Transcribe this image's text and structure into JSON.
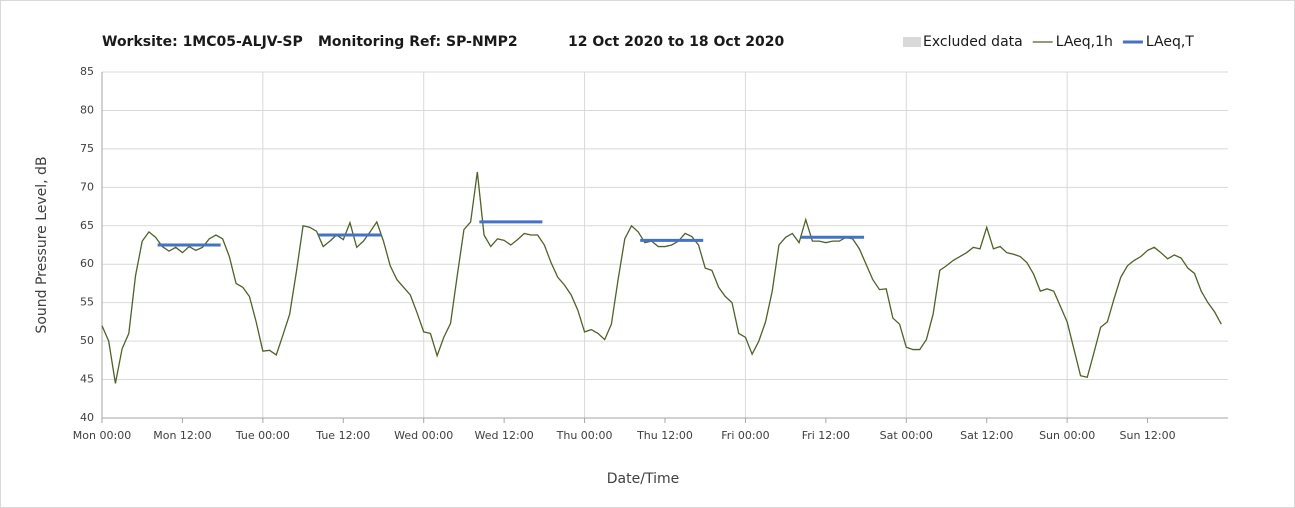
{
  "chart_data": {
    "type": "line",
    "title": [
      "Worksite: 1MC05-ALJV-SP",
      "Monitoring Ref: SP-NMP2",
      "12 Oct 2020 to 18 Oct 2020"
    ],
    "xlabel": "Date/Time",
    "ylabel": "Sound Pressure Level, dB",
    "xlim": [
      0,
      168
    ],
    "ylim": [
      40,
      85
    ],
    "yticks": [
      40,
      45,
      50,
      55,
      60,
      65,
      70,
      75,
      80,
      85
    ],
    "xticks": [
      {
        "value": 0,
        "label": "Mon 00:00"
      },
      {
        "value": 12,
        "label": "Mon 12:00"
      },
      {
        "value": 24,
        "label": "Tue 00:00"
      },
      {
        "value": 36,
        "label": "Tue 12:00"
      },
      {
        "value": 48,
        "label": "Wed 00:00"
      },
      {
        "value": 60,
        "label": "Wed 12:00"
      },
      {
        "value": 72,
        "label": "Thu 00:00"
      },
      {
        "value": 84,
        "label": "Thu 12:00"
      },
      {
        "value": 96,
        "label": "Fri 00:00"
      },
      {
        "value": 108,
        "label": "Fri 12:00"
      },
      {
        "value": 120,
        "label": "Sat 00:00"
      },
      {
        "value": 132,
        "label": "Sat 12:00"
      },
      {
        "value": 144,
        "label": "Sun 00:00"
      },
      {
        "value": 156,
        "label": "Sun 12:00"
      }
    ],
    "grid": true,
    "legend": "top-right",
    "excluded_legend": {
      "name": "Excluded data",
      "color": "#d9d9d9"
    },
    "series": [
      {
        "name": "LAeq,1h",
        "color": "#4f6228",
        "x": [
          0,
          1,
          2,
          3,
          4,
          5,
          6,
          7,
          8,
          9,
          10,
          11,
          12,
          13,
          14,
          15,
          16,
          17,
          18,
          19,
          20,
          21,
          22,
          23,
          24,
          25,
          26,
          27,
          28,
          29,
          30,
          31,
          32,
          33,
          34,
          35,
          36,
          37,
          38,
          39,
          40,
          41,
          42,
          43,
          44,
          45,
          46,
          47,
          48,
          49,
          50,
          51,
          52,
          53,
          54,
          55,
          56,
          57,
          58,
          59,
          60,
          61,
          62,
          63,
          64,
          65,
          66,
          67,
          68,
          69,
          70,
          71,
          72,
          73,
          74,
          75,
          76,
          77,
          78,
          79,
          80,
          81,
          82,
          83,
          84,
          85,
          86,
          87,
          88,
          89,
          90,
          91,
          92,
          93,
          94,
          95,
          96,
          97,
          98,
          99,
          100,
          101,
          102,
          103,
          104,
          105,
          106,
          107,
          108,
          109,
          110,
          111,
          112,
          113,
          114,
          115,
          116,
          117,
          118,
          119,
          120,
          121,
          122,
          123,
          124,
          125,
          126,
          127,
          128,
          129,
          130,
          131,
          132,
          133,
          134,
          135,
          136,
          137,
          138,
          139,
          140,
          141,
          142,
          143,
          144,
          145,
          146,
          147,
          148,
          149,
          150,
          151,
          152,
          153,
          154,
          155,
          156,
          157,
          158,
          159,
          160,
          161,
          162,
          163,
          164,
          165,
          166,
          167
        ],
        "values": [
          52,
          50,
          44.5,
          49,
          51,
          58.5,
          63,
          64.2,
          63.5,
          62.3,
          61.7,
          62.2,
          61.5,
          62.3,
          61.8,
          62.2,
          63.3,
          63.8,
          63.3,
          61,
          57.5,
          57,
          55.8,
          52.5,
          48.7,
          48.8,
          48.2,
          50.8,
          53.5,
          59,
          65,
          64.8,
          64.3,
          62.3,
          63,
          63.8,
          63.2,
          65.4,
          62.2,
          63,
          64.2,
          65.5,
          63,
          59.8,
          58,
          57,
          56,
          53.7,
          51.2,
          51,
          48.1,
          50.5,
          52.3,
          58.5,
          64.5,
          65.5,
          72,
          63.8,
          62.3,
          63.3,
          63.1,
          62.5,
          63.2,
          64,
          63.8,
          63.8,
          62.5,
          60.2,
          58.3,
          57.3,
          56,
          54,
          51.2,
          51.5,
          51,
          50.2,
          52.2,
          58,
          63.3,
          65,
          64.2,
          62.8,
          63,
          62.3,
          62.3,
          62.5,
          63,
          64,
          63.6,
          62.5,
          59.5,
          59.2,
          57,
          55.8,
          55,
          51,
          50.5,
          48.3,
          50,
          52.5,
          56.5,
          62.5,
          63.5,
          64,
          62.8,
          65.8,
          63,
          63,
          62.8,
          63,
          63,
          63.5,
          63.3,
          62,
          60,
          58,
          56.7,
          56.8,
          53,
          52.2,
          49.2,
          48.9,
          48.9,
          50.2,
          53.5,
          59.2,
          59.8,
          60.5,
          61,
          61.5,
          62.2,
          62,
          64.8,
          62,
          62.3,
          61.5,
          61.3,
          61,
          60.2,
          58.7,
          56.5,
          56.8,
          56.5,
          54.5,
          52.5,
          49,
          45.5,
          45.3,
          48.5,
          51.8,
          52.5,
          55.5,
          58.3,
          59.8,
          60.5,
          61,
          61.8,
          62.2,
          61.5,
          60.7,
          61.2,
          60.8,
          59.5,
          58.8,
          56.5,
          55,
          53.8,
          52.2
        ]
      },
      {
        "name": "LAeq,T",
        "color": "#4472c4",
        "x": [
          8.3,
          17.7,
          null,
          32.3,
          41.7,
          null,
          56.3,
          65.7,
          null,
          80.3,
          89.7,
          null,
          104.3,
          113.7
        ],
        "values": [
          62.5,
          62.5,
          null,
          63.8,
          63.8,
          null,
          65.5,
          65.5,
          null,
          63.1,
          63.1,
          null,
          63.5,
          63.5
        ]
      }
    ]
  }
}
